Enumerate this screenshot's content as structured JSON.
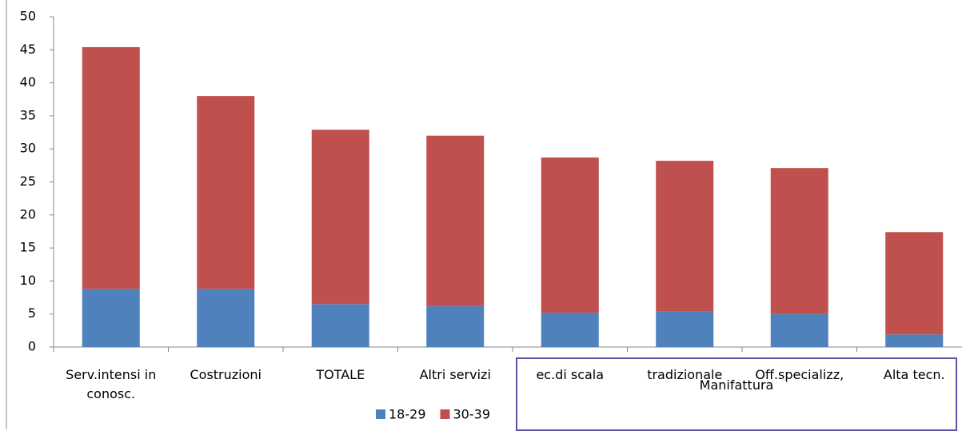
{
  "chart_data": {
    "type": "stacked_bar",
    "categories": [
      "Serv.intensi in conosc.",
      "Costruzioni",
      "TOTALE",
      "Altri servizi",
      "ec.di scala",
      "tradizionale",
      "Off.specializz,",
      "Alta tecn."
    ],
    "series": [
      {
        "name": "18-29",
        "color": "#4f81bd",
        "values": [
          8.8,
          8.8,
          6.5,
          6.2,
          5.2,
          5.4,
          5.0,
          1.9
        ]
      },
      {
        "name": "30-39",
        "color": "#c0504d",
        "values": [
          36.6,
          29.2,
          26.4,
          25.8,
          23.5,
          22.8,
          22.1,
          15.5
        ]
      }
    ],
    "group_label": "Manifattura",
    "ylim": [
      0,
      50
    ],
    "yticks": [
      0,
      5,
      10,
      15,
      20,
      25,
      30,
      35,
      40,
      45,
      50
    ]
  }
}
